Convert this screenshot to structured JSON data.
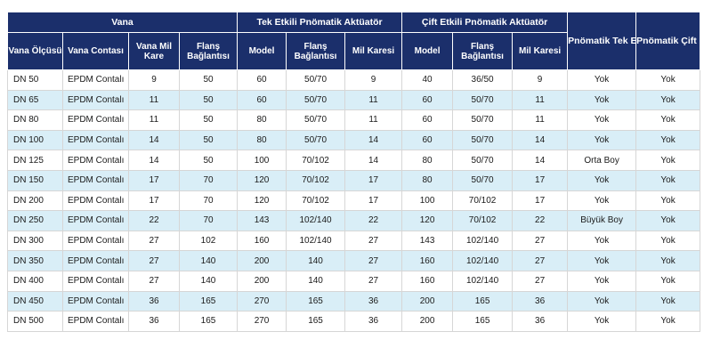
{
  "groups": {
    "vana": "Vana",
    "tek": "Tek Etkili Pnömatik Aktüatör",
    "cift": "Çift Etkili Pnömatik Aktüatör"
  },
  "headers": {
    "vana_olcusu": "Vana Ölçüsü",
    "vana_contasi": "Vana Contası",
    "vana_mil_kare": "Vana Mil Kare",
    "flans_baglantisi_1": "Flanş Bağlantısı",
    "tek_model": "Model",
    "tek_flans": "Flanş Bağlantısı",
    "tek_mil": "Mil Karesi",
    "cift_model": "Model",
    "cift_flans": "Flanş Bağlantısı",
    "cift_mil": "Mil Karesi",
    "tek_braket": "Pnömatik Tek Etkili Aktüatör Braket",
    "cift_braket": "Pnömatik Çift Etkili Aktüatör Braket"
  },
  "rows": [
    [
      "DN 50",
      "EPDM Contalı",
      "9",
      "50",
      "60",
      "50/70",
      "9",
      "40",
      "36/50",
      "9",
      "Yok",
      "Yok"
    ],
    [
      "DN 65",
      "EPDM Contalı",
      "11",
      "50",
      "60",
      "50/70",
      "11",
      "60",
      "50/70",
      "11",
      "Yok",
      "Yok"
    ],
    [
      "DN 80",
      "EPDM Contalı",
      "11",
      "50",
      "80",
      "50/70",
      "11",
      "60",
      "50/70",
      "11",
      "Yok",
      "Yok"
    ],
    [
      "DN 100",
      "EPDM Contalı",
      "14",
      "50",
      "80",
      "50/70",
      "14",
      "60",
      "50/70",
      "14",
      "Yok",
      "Yok"
    ],
    [
      "DN 125",
      "EPDM Contalı",
      "14",
      "50",
      "100",
      "70/102",
      "14",
      "80",
      "50/70",
      "14",
      "Orta Boy",
      "Yok"
    ],
    [
      "DN 150",
      "EPDM Contalı",
      "17",
      "70",
      "120",
      "70/102",
      "17",
      "80",
      "50/70",
      "17",
      "Yok",
      "Yok"
    ],
    [
      "DN 200",
      "EPDM Contalı",
      "17",
      "70",
      "120",
      "70/102",
      "17",
      "100",
      "70/102",
      "17",
      "Yok",
      "Yok"
    ],
    [
      "DN 250",
      "EPDM Contalı",
      "22",
      "70",
      "143",
      "102/140",
      "22",
      "120",
      "70/102",
      "22",
      "Büyük Boy",
      "Yok"
    ],
    [
      "DN 300",
      "EPDM Contalı",
      "27",
      "102",
      "160",
      "102/140",
      "27",
      "143",
      "102/140",
      "27",
      "Yok",
      "Yok"
    ],
    [
      "DN 350",
      "EPDM Contalı",
      "27",
      "140",
      "200",
      "140",
      "27",
      "160",
      "102/140",
      "27",
      "Yok",
      "Yok"
    ],
    [
      "DN 400",
      "EPDM Contalı",
      "27",
      "140",
      "200",
      "140",
      "27",
      "160",
      "102/140",
      "27",
      "Yok",
      "Yok"
    ],
    [
      "DN 450",
      "EPDM Contalı",
      "36",
      "165",
      "270",
      "165",
      "36",
      "200",
      "165",
      "36",
      "Yok",
      "Yok"
    ],
    [
      "DN 500",
      "EPDM Contalı",
      "36",
      "165",
      "270",
      "165",
      "36",
      "200",
      "165",
      "36",
      "Yok",
      "Yok"
    ]
  ]
}
